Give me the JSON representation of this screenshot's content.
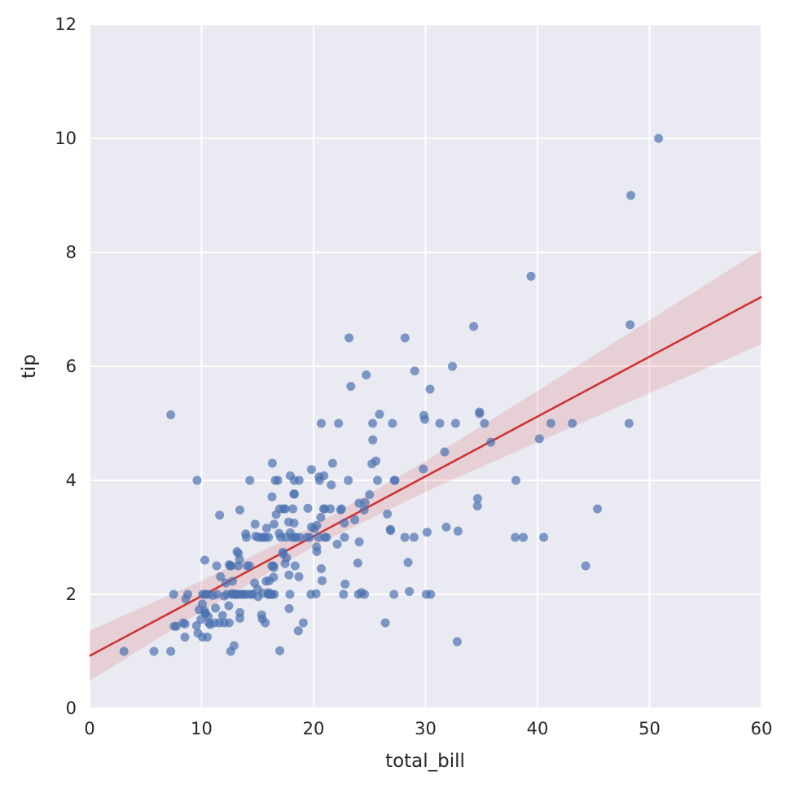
{
  "chart_data": {
    "type": "scatter",
    "title": "",
    "xlabel": "total_bill",
    "ylabel": "tip",
    "xlim": [
      0,
      60
    ],
    "ylim": [
      0,
      12
    ],
    "xticks": [
      0,
      10,
      20,
      30,
      40,
      50,
      60
    ],
    "yticks": [
      0,
      2,
      4,
      6,
      8,
      10,
      12
    ],
    "grid": true,
    "legend": false,
    "style": {
      "figure_background": "#ffffff",
      "axes_background": "#eaeaf2",
      "grid_color": "#ffffff",
      "point_color": "#4c72b0",
      "point_opacity": 0.7,
      "point_radius": 5.5,
      "line_color": "#d03030",
      "line_width": 2.5,
      "band_color": "#d03030",
      "band_opacity": 0.14,
      "tick_color": "#262626",
      "tick_font_size": 21
    },
    "points": [
      [
        16.99,
        1.01
      ],
      [
        10.34,
        1.66
      ],
      [
        21.01,
        3.5
      ],
      [
        23.68,
        3.31
      ],
      [
        24.59,
        3.61
      ],
      [
        25.29,
        4.71
      ],
      [
        8.77,
        2.0
      ],
      [
        26.88,
        3.12
      ],
      [
        15.04,
        1.96
      ],
      [
        14.78,
        3.23
      ],
      [
        10.27,
        1.71
      ],
      [
        35.26,
        5.0
      ],
      [
        15.42,
        1.57
      ],
      [
        18.43,
        3.0
      ],
      [
        14.83,
        3.02
      ],
      [
        21.58,
        3.92
      ],
      [
        10.33,
        1.67
      ],
      [
        16.29,
        3.71
      ],
      [
        16.97,
        3.5
      ],
      [
        20.65,
        3.35
      ],
      [
        17.92,
        4.08
      ],
      [
        20.29,
        2.75
      ],
      [
        15.77,
        2.23
      ],
      [
        39.42,
        7.58
      ],
      [
        19.82,
        3.18
      ],
      [
        17.81,
        2.34
      ],
      [
        13.37,
        2.0
      ],
      [
        12.69,
        2.0
      ],
      [
        21.7,
        4.3
      ],
      [
        19.65,
        3.0
      ],
      [
        9.55,
        1.45
      ],
      [
        18.35,
        2.5
      ],
      [
        15.06,
        3.0
      ],
      [
        20.69,
        2.45
      ],
      [
        17.78,
        3.27
      ],
      [
        24.06,
        3.6
      ],
      [
        16.31,
        2.0
      ],
      [
        16.93,
        3.07
      ],
      [
        18.69,
        2.31
      ],
      [
        31.27,
        5.0
      ],
      [
        16.04,
        2.24
      ],
      [
        17.46,
        2.54
      ],
      [
        13.94,
        3.06
      ],
      [
        9.68,
        1.32
      ],
      [
        30.4,
        5.6
      ],
      [
        18.29,
        3.0
      ],
      [
        22.23,
        5.0
      ],
      [
        32.4,
        6.0
      ],
      [
        28.55,
        2.05
      ],
      [
        18.04,
        3.0
      ],
      [
        12.54,
        2.5
      ],
      [
        10.29,
        2.6
      ],
      [
        34.81,
        5.2
      ],
      [
        9.94,
        1.56
      ],
      [
        25.56,
        4.34
      ],
      [
        19.49,
        3.51
      ],
      [
        38.01,
        3.0
      ],
      [
        26.41,
        1.5
      ],
      [
        11.24,
        1.76
      ],
      [
        48.27,
        6.73
      ],
      [
        20.29,
        3.21
      ],
      [
        13.81,
        2.0
      ],
      [
        11.02,
        1.98
      ],
      [
        18.29,
        3.76
      ],
      [
        17.59,
        2.64
      ],
      [
        20.08,
        3.15
      ],
      [
        16.45,
        2.47
      ],
      [
        3.07,
        1.0
      ],
      [
        20.23,
        2.01
      ],
      [
        15.01,
        2.09
      ],
      [
        12.02,
        1.97
      ],
      [
        17.07,
        3.0
      ],
      [
        26.86,
        3.14
      ],
      [
        25.28,
        5.0
      ],
      [
        14.73,
        2.2
      ],
      [
        10.51,
        1.25
      ],
      [
        17.92,
        3.08
      ],
      [
        27.2,
        4.0
      ],
      [
        22.76,
        3.0
      ],
      [
        17.29,
        2.71
      ],
      [
        19.44,
        3.0
      ],
      [
        16.66,
        3.4
      ],
      [
        10.07,
        1.83
      ],
      [
        32.68,
        5.0
      ],
      [
        15.98,
        2.03
      ],
      [
        34.83,
        5.17
      ],
      [
        13.03,
        2.0
      ],
      [
        18.28,
        4.0
      ],
      [
        24.71,
        5.85
      ],
      [
        21.16,
        3.0
      ],
      [
        28.97,
        3.0
      ],
      [
        22.49,
        3.5
      ],
      [
        5.75,
        1.0
      ],
      [
        16.32,
        4.3
      ],
      [
        22.75,
        3.25
      ],
      [
        40.17,
        4.73
      ],
      [
        27.28,
        4.0
      ],
      [
        12.03,
        1.5
      ],
      [
        21.01,
        3.0
      ],
      [
        12.46,
        1.5
      ],
      [
        11.35,
        2.5
      ],
      [
        15.38,
        3.0
      ],
      [
        44.3,
        2.5
      ],
      [
        22.42,
        3.48
      ],
      [
        20.92,
        4.08
      ],
      [
        15.36,
        1.64
      ],
      [
        20.49,
        4.06
      ],
      [
        25.21,
        4.29
      ],
      [
        18.24,
        3.76
      ],
      [
        14.31,
        4.0
      ],
      [
        14.0,
        3.0
      ],
      [
        7.25,
        1.0
      ],
      [
        38.07,
        4.0
      ],
      [
        23.95,
        2.55
      ],
      [
        25.71,
        4.0
      ],
      [
        17.31,
        3.5
      ],
      [
        29.93,
        5.07
      ],
      [
        10.65,
        1.5
      ],
      [
        12.43,
        1.8
      ],
      [
        24.08,
        2.92
      ],
      [
        11.69,
        2.31
      ],
      [
        13.42,
        1.68
      ],
      [
        14.26,
        2.5
      ],
      [
        15.95,
        2.0
      ],
      [
        12.48,
        2.52
      ],
      [
        29.8,
        4.2
      ],
      [
        8.52,
        1.48
      ],
      [
        14.52,
        2.0
      ],
      [
        11.38,
        2.0
      ],
      [
        22.82,
        2.18
      ],
      [
        19.08,
        1.5
      ],
      [
        20.27,
        2.83
      ],
      [
        11.17,
        1.5
      ],
      [
        12.26,
        2.0
      ],
      [
        18.26,
        3.25
      ],
      [
        8.51,
        1.25
      ],
      [
        10.33,
        2.0
      ],
      [
        14.15,
        2.0
      ],
      [
        16.0,
        2.0
      ],
      [
        13.16,
        2.75
      ],
      [
        17.47,
        3.5
      ],
      [
        34.3,
        6.7
      ],
      [
        41.19,
        5.0
      ],
      [
        27.05,
        5.0
      ],
      [
        16.43,
        2.3
      ],
      [
        8.35,
        1.5
      ],
      [
        18.64,
        1.36
      ],
      [
        11.87,
        1.63
      ],
      [
        9.78,
        1.73
      ],
      [
        7.51,
        2.0
      ],
      [
        14.07,
        2.5
      ],
      [
        13.13,
        2.0
      ],
      [
        17.26,
        2.74
      ],
      [
        24.55,
        2.0
      ],
      [
        19.77,
        2.0
      ],
      [
        29.85,
        5.14
      ],
      [
        48.17,
        5.0
      ],
      [
        25.0,
        3.75
      ],
      [
        13.39,
        2.61
      ],
      [
        16.49,
        2.0
      ],
      [
        21.5,
        3.5
      ],
      [
        12.66,
        2.5
      ],
      [
        16.21,
        2.0
      ],
      [
        13.81,
        2.0
      ],
      [
        17.51,
        3.0
      ],
      [
        24.52,
        3.48
      ],
      [
        20.76,
        2.24
      ],
      [
        31.71,
        4.5
      ],
      [
        10.59,
        1.61
      ],
      [
        10.63,
        2.0
      ],
      [
        50.81,
        10.0
      ],
      [
        15.81,
        3.16
      ],
      [
        7.25,
        5.15
      ],
      [
        31.85,
        3.18
      ],
      [
        16.82,
        4.0
      ],
      [
        32.9,
        3.11
      ],
      [
        17.89,
        2.0
      ],
      [
        14.48,
        2.0
      ],
      [
        9.6,
        4.0
      ],
      [
        34.63,
        3.55
      ],
      [
        34.65,
        3.68
      ],
      [
        23.33,
        5.65
      ],
      [
        45.35,
        3.5
      ],
      [
        23.17,
        6.5
      ],
      [
        40.55,
        3.0
      ],
      [
        20.69,
        5.0
      ],
      [
        20.9,
        3.5
      ],
      [
        30.46,
        2.0
      ],
      [
        18.15,
        3.5
      ],
      [
        23.1,
        4.0
      ],
      [
        15.69,
        1.5
      ],
      [
        19.81,
        4.19
      ],
      [
        28.44,
        2.56
      ],
      [
        15.48,
        2.02
      ],
      [
        16.58,
        4.0
      ],
      [
        7.56,
        1.44
      ],
      [
        10.34,
        2.0
      ],
      [
        43.11,
        5.0
      ],
      [
        13.0,
        2.0
      ],
      [
        13.51,
        2.0
      ],
      [
        18.71,
        4.0
      ],
      [
        12.74,
        2.01
      ],
      [
        13.0,
        2.0
      ],
      [
        16.4,
        2.5
      ],
      [
        20.53,
        4.0
      ],
      [
        16.47,
        3.23
      ],
      [
        26.59,
        3.41
      ],
      [
        38.73,
        3.0
      ],
      [
        24.27,
        2.03
      ],
      [
        12.76,
        2.23
      ],
      [
        30.06,
        2.0
      ],
      [
        25.89,
        5.16
      ],
      [
        48.33,
        9.0
      ],
      [
        13.27,
        2.5
      ],
      [
        28.17,
        6.5
      ],
      [
        12.9,
        1.1
      ],
      [
        28.15,
        3.0
      ],
      [
        11.59,
        1.5
      ],
      [
        7.74,
        1.44
      ],
      [
        30.14,
        3.09
      ],
      [
        12.16,
        2.2
      ],
      [
        13.42,
        3.48
      ],
      [
        8.58,
        1.92
      ],
      [
        15.98,
        3.0
      ],
      [
        13.42,
        1.58
      ],
      [
        16.27,
        2.5
      ],
      [
        10.09,
        2.0
      ],
      [
        20.45,
        3.0
      ],
      [
        13.28,
        2.72
      ],
      [
        22.12,
        2.88
      ],
      [
        24.01,
        2.0
      ],
      [
        15.69,
        3.0
      ],
      [
        11.61,
        3.39
      ],
      [
        10.77,
        1.47
      ],
      [
        15.53,
        3.0
      ],
      [
        10.07,
        1.25
      ],
      [
        12.6,
        1.0
      ],
      [
        32.83,
        1.17
      ],
      [
        35.83,
        4.67
      ],
      [
        29.03,
        5.92
      ],
      [
        27.18,
        2.0
      ],
      [
        22.67,
        2.0
      ],
      [
        17.82,
        1.75
      ],
      [
        18.78,
        3.0
      ]
    ],
    "regression_line": {
      "x": [
        0,
        60
      ],
      "y": [
        0.92,
        7.22
      ]
    },
    "ci_band": {
      "x": [
        0,
        10,
        20,
        30,
        40,
        50,
        60
      ],
      "lower": [
        0.48,
        1.7,
        2.84,
        3.8,
        4.67,
        5.53,
        6.39
      ],
      "upper": [
        1.36,
        2.24,
        3.2,
        4.34,
        5.57,
        6.81,
        8.05
      ]
    }
  }
}
